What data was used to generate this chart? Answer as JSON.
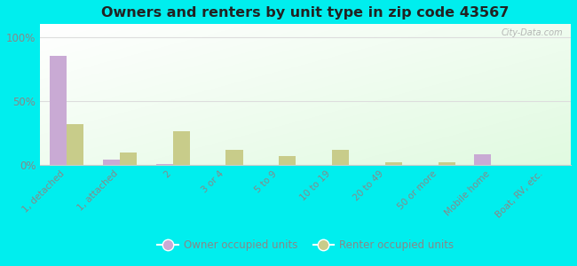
{
  "title": "Owners and renters by unit type in zip code 43567",
  "categories": [
    "1, detached",
    "1, attached",
    "2",
    "3 or 4",
    "5 to 9",
    "10 to 19",
    "20 to 49",
    "50 or more",
    "Mobile home",
    "Boat, RV, etc."
  ],
  "owner_values": [
    85,
    4,
    1,
    0.3,
    0.3,
    0.3,
    0.3,
    0.3,
    8,
    0.3
  ],
  "renter_values": [
    32,
    10,
    26,
    12,
    7,
    12,
    2,
    2,
    0.3,
    0.3
  ],
  "owner_color": "#c9aad4",
  "renter_color": "#c8cc8a",
  "background_color": "#00eeee",
  "title_color": "#222222",
  "tick_color": "#888888",
  "yticks": [
    0,
    50,
    100
  ],
  "ylabels": [
    "0%",
    "50%",
    "100%"
  ],
  "ylim": [
    0,
    110
  ],
  "bar_width": 0.32,
  "legend_owner": "Owner occupied units",
  "legend_renter": "Renter occupied units",
  "watermark": "City-Data.com",
  "grid_color": "#dddddd",
  "bottom_spine_color": "#cccccc"
}
